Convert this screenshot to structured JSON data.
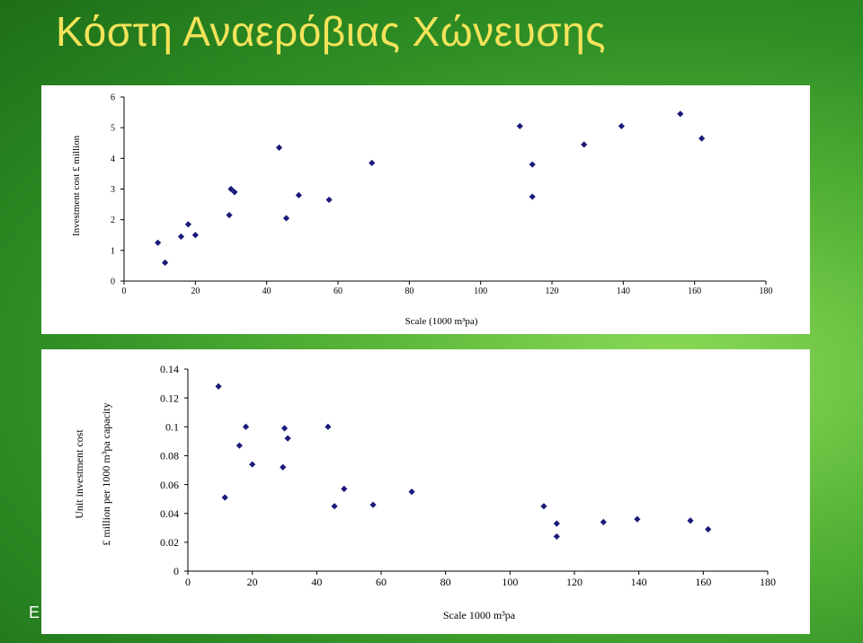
{
  "slide": {
    "title": "Κόστη Αναερόβιας Χώνευσης",
    "footer_fragment": "E"
  },
  "colors": {
    "point": "#1a1a7a",
    "axis": "#000000"
  },
  "chart_data": [
    {
      "type": "scatter",
      "title": "",
      "xlabel": "Scale (1000 m³pa)",
      "ylabel": "Investment cost £ million",
      "xlim": [
        0,
        180
      ],
      "ylim": [
        0,
        6
      ],
      "xticks": [
        0,
        20,
        40,
        60,
        80,
        100,
        120,
        140,
        160,
        180
      ],
      "yticks": [
        0,
        1,
        2,
        3,
        4,
        5,
        6
      ],
      "grid": false,
      "points": [
        {
          "x": 9.5,
          "y": 1.25
        },
        {
          "x": 11.5,
          "y": 0.6
        },
        {
          "x": 16,
          "y": 1.45
        },
        {
          "x": 18,
          "y": 1.85
        },
        {
          "x": 20,
          "y": 1.5
        },
        {
          "x": 29.5,
          "y": 2.15
        },
        {
          "x": 30,
          "y": 3.0
        },
        {
          "x": 31,
          "y": 2.9
        },
        {
          "x": 43.5,
          "y": 4.35
        },
        {
          "x": 45.5,
          "y": 2.05
        },
        {
          "x": 49,
          "y": 2.8
        },
        {
          "x": 57.5,
          "y": 2.65
        },
        {
          "x": 69.5,
          "y": 3.85
        },
        {
          "x": 111,
          "y": 5.05
        },
        {
          "x": 114.5,
          "y": 3.8
        },
        {
          "x": 114.5,
          "y": 2.75
        },
        {
          "x": 129,
          "y": 4.45
        },
        {
          "x": 139.5,
          "y": 5.05
        },
        {
          "x": 156,
          "y": 5.45
        },
        {
          "x": 162,
          "y": 4.65
        }
      ]
    },
    {
      "type": "scatter",
      "title": "",
      "xlabel": "Scale 1000 m³pa",
      "ylabel": "Unit investment cost £ million per 1000 m³pa capacity",
      "ylabel_lines": [
        "Unit investment cost",
        "£ million per 1000 m³pa capacity"
      ],
      "xlim": [
        0,
        180
      ],
      "ylim": [
        0,
        0.14
      ],
      "xticks": [
        0,
        20,
        40,
        60,
        80,
        100,
        120,
        140,
        160,
        180
      ],
      "yticks": [
        0,
        0.02,
        0.04,
        0.06,
        0.08,
        0.1,
        0.12,
        0.14
      ],
      "ytick_labels": [
        "0",
        "0.02",
        "0.04",
        "0.06",
        "0.08",
        "0.1",
        "0.12",
        "0.14"
      ],
      "grid": false,
      "points": [
        {
          "x": 9.5,
          "y": 0.128
        },
        {
          "x": 11.5,
          "y": 0.051
        },
        {
          "x": 16,
          "y": 0.087
        },
        {
          "x": 18,
          "y": 0.1
        },
        {
          "x": 20,
          "y": 0.074
        },
        {
          "x": 29.5,
          "y": 0.072
        },
        {
          "x": 30,
          "y": 0.099
        },
        {
          "x": 31,
          "y": 0.092
        },
        {
          "x": 43.5,
          "y": 0.1
        },
        {
          "x": 45.5,
          "y": 0.045
        },
        {
          "x": 48.5,
          "y": 0.057
        },
        {
          "x": 57.5,
          "y": 0.046
        },
        {
          "x": 69.5,
          "y": 0.055
        },
        {
          "x": 110.5,
          "y": 0.045
        },
        {
          "x": 114.5,
          "y": 0.033
        },
        {
          "x": 114.5,
          "y": 0.024
        },
        {
          "x": 129,
          "y": 0.034
        },
        {
          "x": 139.5,
          "y": 0.036
        },
        {
          "x": 156,
          "y": 0.035
        },
        {
          "x": 161.5,
          "y": 0.029
        }
      ]
    }
  ]
}
